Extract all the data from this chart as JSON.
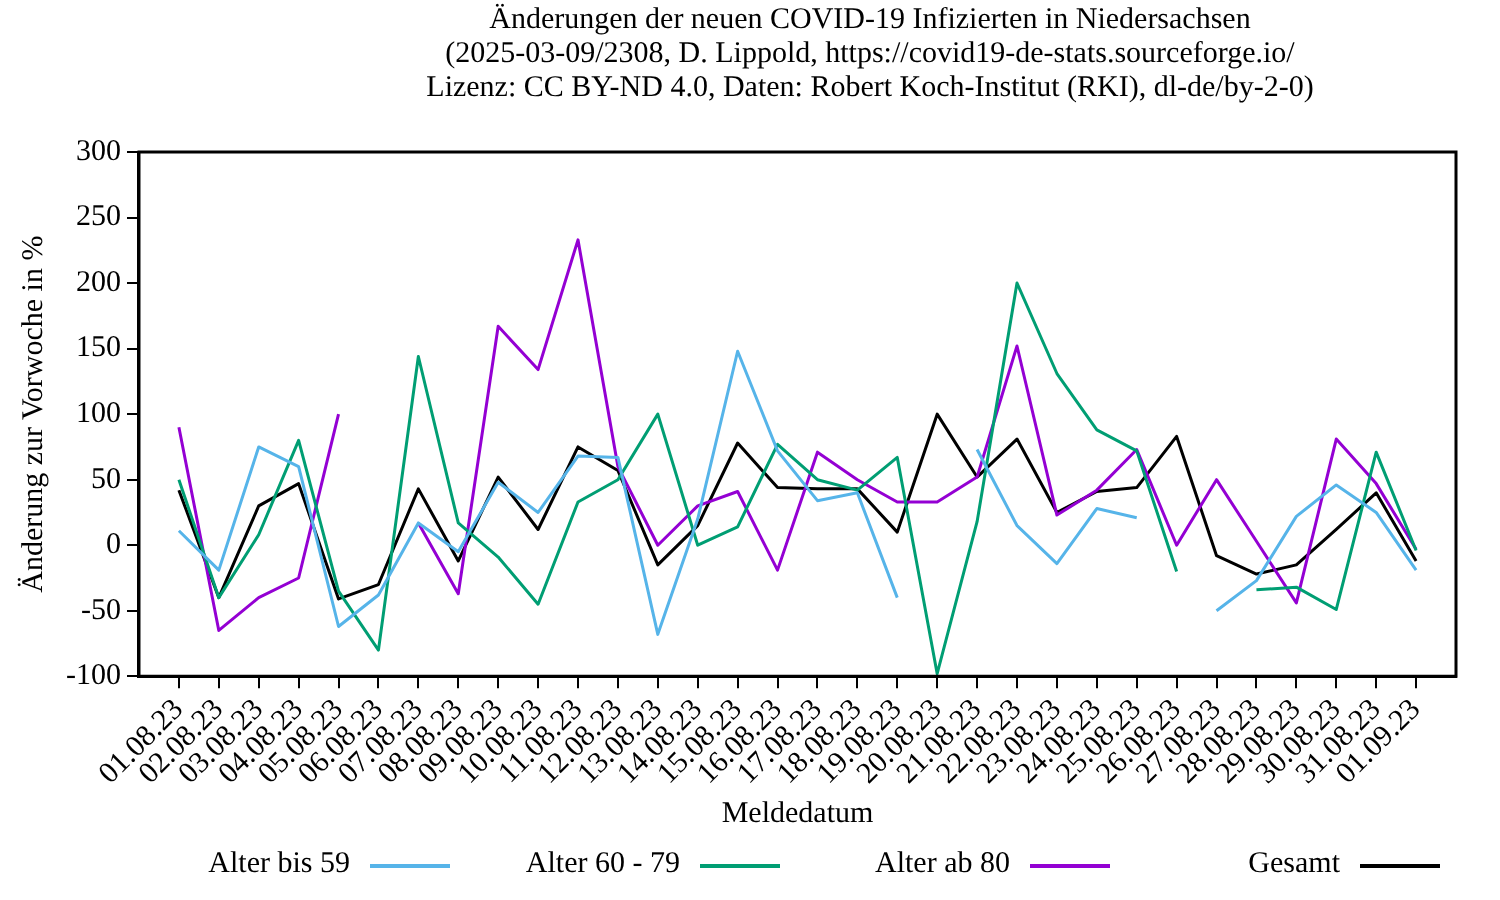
{
  "chart_data": {
    "type": "line",
    "title": "Änderungen der neuen COVID-19 Infizierten in Niedersachsen",
    "subtitle": "(2025-03-09/2308, D. Lippold, https://covid19-de-stats.sourceforge.io/\nLizenz: CC BY-ND 4.0, Daten: Robert Koch-Institut (RKI), dl-de/by-2-0)",
    "xlabel": "Meldedatum",
    "ylabel": "Änderung zur Vorwoche in %",
    "categories": [
      "01.08.23",
      "02.08.23",
      "03.08.23",
      "04.08.23",
      "05.08.23",
      "06.08.23",
      "07.08.23",
      "08.08.23",
      "09.08.23",
      "10.08.23",
      "11.08.23",
      "12.08.23",
      "13.08.23",
      "14.08.23",
      "15.08.23",
      "16.08.23",
      "17.08.23",
      "18.08.23",
      "19.08.23",
      "20.08.23",
      "21.08.23",
      "22.08.23",
      "23.08.23",
      "24.08.23",
      "25.08.23",
      "26.08.23",
      "27.08.23",
      "28.08.23",
      "29.08.23",
      "30.08.23",
      "31.08.23",
      "01.09.23"
    ],
    "series": [
      {
        "name": "Alter bis 59",
        "color": "#56b4e9",
        "values": [
          11,
          -19,
          75,
          60,
          -62,
          -38,
          17,
          -5,
          48,
          25,
          68,
          67,
          -68,
          20,
          148,
          72,
          34,
          40,
          -40,
          null,
          73,
          15,
          -14,
          28,
          21,
          null,
          -50,
          -27,
          22,
          46,
          25,
          -19
        ]
      },
      {
        "name": "Alter 60 - 79",
        "color": "#009e73",
        "values": [
          50,
          -40,
          8,
          80,
          -35,
          -80,
          144,
          17,
          -9,
          -45,
          33,
          50,
          100,
          0,
          14,
          77,
          50,
          42,
          67,
          -98,
          18,
          200,
          131,
          88,
          72,
          -20,
          null,
          -34,
          -32,
          -49,
          71,
          -4
        ]
      },
      {
        "name": "Alter ab 80",
        "color": "#9400d3",
        "values": [
          90,
          -65,
          -40,
          -25,
          100,
          null,
          17,
          -37,
          167,
          134,
          233,
          60,
          0,
          30,
          41,
          -19,
          71,
          50,
          33,
          33,
          52,
          152,
          23,
          42,
          73,
          0,
          50,
          3,
          -44,
          81,
          47,
          -3
        ]
      },
      {
        "name": "Gesamt",
        "color": "#000000",
        "values": [
          42,
          -40,
          30,
          47,
          -41,
          -30,
          43,
          -12,
          52,
          12,
          75,
          57,
          -15,
          15,
          78,
          44,
          43,
          43,
          10,
          100,
          52,
          81,
          25,
          41,
          44,
          83,
          -8,
          -22,
          -15,
          12,
          40,
          -12
        ]
      }
    ],
    "ylim": [
      -100,
      300
    ],
    "yticks": [
      -100,
      -50,
      0,
      50,
      100,
      150,
      200,
      250,
      300
    ],
    "grid": false,
    "legend": "bottom",
    "line_style": "solid",
    "marker": "none"
  }
}
